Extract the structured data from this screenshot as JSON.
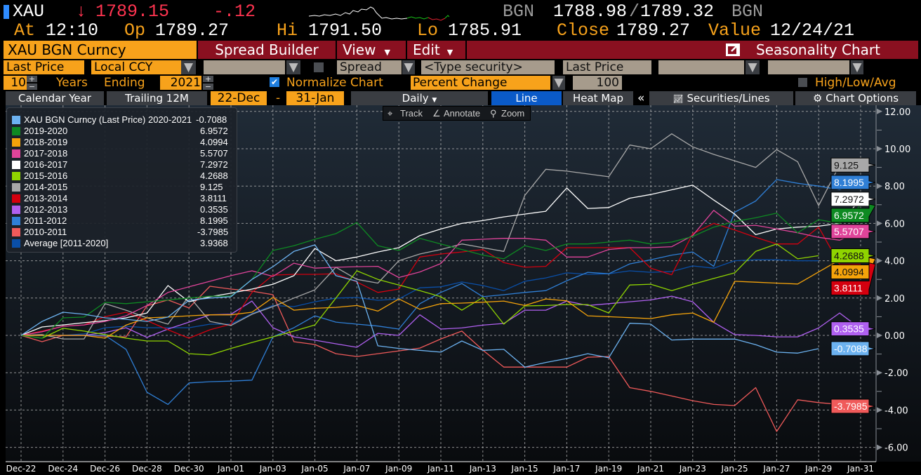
{
  "quote": {
    "ticker": "XAU",
    "direction_arrow": "↓",
    "last": "1789.15",
    "change": "-.12",
    "bid_source": "BGN",
    "bid": "1788.98",
    "separator": "/",
    "ask": "1789.32",
    "ask_source": "BGN",
    "at_label": "At",
    "at": "12:10",
    "op_label": "Op",
    "op": "1789.27",
    "hi_label": "Hi",
    "hi": "1791.50",
    "lo_label": "Lo",
    "lo": "1785.91",
    "close_label": "Close",
    "close": "1789.27",
    "value_label": "Value",
    "value": "12/24/21"
  },
  "menubar": {
    "security": "XAU BGN Curncy",
    "spread_builder": "Spread Builder",
    "view": "View",
    "edit": "Edit",
    "title": "Seasonality Chart"
  },
  "row4": {
    "field": "Last Price",
    "currency": "Local CCY",
    "compare_field": "",
    "spread": "Spread",
    "security_placeholder": "<Type security>",
    "field2": "Last Price",
    "extra1": "",
    "extra2": ""
  },
  "row5": {
    "years": "10",
    "years_label": "Years",
    "ending_label": "Ending",
    "ending_year": "2021",
    "normalize_checked": true,
    "normalize_label": "Normalize Chart",
    "normalize_mode": "Percent Change",
    "base_value": "100",
    "high_low_avg_checked": false,
    "high_low_avg_label": "High/Low/Avg"
  },
  "row6": {
    "calendar_year": "Calendar Year",
    "trailing": "Trailing 12M",
    "start": "22-Dec",
    "dash": "-",
    "end": "31-Jan",
    "periodicity": "Daily",
    "line": "Line",
    "heat_map": "Heat Map",
    "collapse": "«",
    "securities_lines": "Securities/Lines",
    "chart_options": "Chart Options"
  },
  "chart_tools": {
    "track": "Track",
    "annotate": "Annotate",
    "zoom": "Zoom"
  },
  "chart_data": {
    "type": "line",
    "x": [
      "Dec-22",
      "Dec-23",
      "Dec-24",
      "Dec-25",
      "Dec-26",
      "Dec-27",
      "Dec-28",
      "Dec-29",
      "Dec-30",
      "Dec-31",
      "Jan-01",
      "Jan-02",
      "Jan-03",
      "Jan-04",
      "Jan-05",
      "Jan-06",
      "Jan-07",
      "Jan-08",
      "Jan-09",
      "Jan-10",
      "Jan-11",
      "Jan-12",
      "Jan-13",
      "Jan-14",
      "Jan-15",
      "Jan-16",
      "Jan-17",
      "Jan-18",
      "Jan-19",
      "Jan-20",
      "Jan-21",
      "Jan-22",
      "Jan-23",
      "Jan-24",
      "Jan-25",
      "Jan-26",
      "Jan-27",
      "Jan-28",
      "Jan-29",
      "Jan-30",
      "Jan-31"
    ],
    "xticks": [
      "Dec-22",
      "Dec-24",
      "Dec-26",
      "Dec-28",
      "Dec-30",
      "Jan-01",
      "Jan-03",
      "Jan-05",
      "Jan-07",
      "Jan-09",
      "Jan-11",
      "Jan-13",
      "Jan-15",
      "Jan-17",
      "Jan-19",
      "Jan-21",
      "Jan-23",
      "Jan-25",
      "Jan-27",
      "Jan-29",
      "Jan-31"
    ],
    "yticks": [
      "12.00",
      "10.00",
      "8.00",
      "6.00",
      "4.00",
      "2.00",
      "0.00",
      "-2.00",
      "-4.00",
      "-6.00"
    ],
    "ylim": [
      -6.5,
      12.5
    ],
    "y_axis_side": "right",
    "grid": true,
    "legend_position": "top-left",
    "series": [
      {
        "name": "XAU BGN Curncy (Last Price) 2020-2021",
        "last": "-0.7088",
        "color": "#6cb2f0",
        "values": [
          0,
          0.75,
          1.24,
          1.13,
          0.94,
          0.86,
          0.75,
          0.98,
          1.88,
          2.0,
          2.07,
          3.0,
          3.68,
          4.5,
          4.85,
          3.2,
          2.9,
          -0.56,
          -0.7,
          -0.8,
          -0.9,
          -0.3,
          -0.8,
          -0.75,
          -1.7,
          -1.45,
          -1.24,
          -0.98,
          -1.2,
          0.65,
          0.6,
          -0.25,
          -0.2,
          -0.2,
          -0.2,
          -0.5,
          -0.9,
          -0.95,
          -0.71,
          null,
          null
        ]
      },
      {
        "name": "2019-2020",
        "last": "6.9572",
        "color": "#0e8a22",
        "values": [
          0,
          -0.15,
          0.94,
          0.98,
          1.77,
          1.7,
          1.8,
          1.9,
          2.0,
          2.1,
          2.1,
          3.0,
          4.55,
          4.8,
          5.15,
          5.45,
          6.05,
          4.8,
          4.55,
          5.2,
          4.9,
          4.6,
          4.3,
          4.1,
          4.8,
          4.55,
          4.9,
          4.9,
          5.0,
          5.1,
          4.9,
          5.0,
          5.3,
          5.8,
          6.1,
          6.3,
          6.55,
          5.5,
          6.2,
          6.0,
          6.96
        ]
      },
      {
        "name": "2018-2019",
        "last": "4.0994",
        "color": "#f5a30a",
        "values": [
          0,
          0,
          0,
          0,
          -0.15,
          0.55,
          0.94,
          0.98,
          1.05,
          1.1,
          1.1,
          1.24,
          2.03,
          1.35,
          1.45,
          1.5,
          1.6,
          1.3,
          1.95,
          1.4,
          1.7,
          1.73,
          1.78,
          1.84,
          1.6,
          1.95,
          1.85,
          1.05,
          1.0,
          0.95,
          0.9,
          1.1,
          1.2,
          0.7,
          2.9,
          2.85,
          2.8,
          2.75,
          3.4,
          4.05,
          4.1
        ]
      },
      {
        "name": "2017-2018",
        "last": "5.5707",
        "color": "#e0449a",
        "values": [
          0,
          0.19,
          0.49,
          0.56,
          0.75,
          1.05,
          1.6,
          2.3,
          2.6,
          2.9,
          3.2,
          3.46,
          3.16,
          3.87,
          3.6,
          3.65,
          3.68,
          3.7,
          3.1,
          3.4,
          3.85,
          5.1,
          5.15,
          5.2,
          5.2,
          5.1,
          4.2,
          4.2,
          4.6,
          4.7,
          4.7,
          4.75,
          5.35,
          6.7,
          5.85,
          5.9,
          5.7,
          5.5,
          5.25,
          5.1,
          5.57
        ]
      },
      {
        "name": "2016-2017",
        "last": "7.2972",
        "color": "#ffffff",
        "values": [
          0,
          0.45,
          0.56,
          0.68,
          0.79,
          0.94,
          1.2,
          2.67,
          1.8,
          2.07,
          2.26,
          2.48,
          2.74,
          3.2,
          4.66,
          4.0,
          4.2,
          4.47,
          4.7,
          5.35,
          5.7,
          6.0,
          6.15,
          6.35,
          6.5,
          6.65,
          7.9,
          6.8,
          6.85,
          7.35,
          7.55,
          7.8,
          8.05,
          7.25,
          6.5,
          5.4,
          5.7,
          5.8,
          5.85,
          6.0,
          7.3
        ]
      },
      {
        "name": "2015-2016",
        "last": "4.2688",
        "color": "#8fd400",
        "values": [
          0,
          -0.15,
          0.38,
          0.23,
          0.04,
          -0.15,
          -0.3,
          -0.3,
          -0.98,
          -1.05,
          -0.7,
          -0.38,
          -0.08,
          0.23,
          0.56,
          2.0,
          3.46,
          3.0,
          2.7,
          2.4,
          2.07,
          1.35,
          2.03,
          0.6,
          1.58,
          1.6,
          1.65,
          1.65,
          1.2,
          2.7,
          2.74,
          2.4,
          2.74,
          3.05,
          3.35,
          4.5,
          4.9,
          4.1,
          4.27,
          null,
          null
        ]
      },
      {
        "name": "2014-2015",
        "last": "9.125",
        "color": "#a8a8a8",
        "values": [
          0,
          0.04,
          -0.19,
          -0.19,
          1.7,
          1.35,
          0.94,
          0.6,
          2.1,
          0.75,
          0.53,
          1.13,
          1.54,
          2.0,
          2.44,
          3.65,
          3.0,
          2.8,
          4.0,
          4.36,
          4.6,
          4.9,
          4.7,
          4.5,
          7.5,
          8.9,
          8.8,
          8.65,
          8.5,
          10.2,
          10.0,
          10.8,
          10.1,
          9.7,
          9.35,
          9.0,
          9.95,
          9.3,
          6.95,
          9.13,
          null
        ]
      },
      {
        "name": "2013-2014",
        "last": "3.8111",
        "color": "#d4000f",
        "values": [
          0,
          0.23,
          0.49,
          0.56,
          1.0,
          1.24,
          0.79,
          0.3,
          -0.15,
          0.3,
          0.6,
          2.3,
          3.23,
          3.27,
          3.27,
          3.3,
          2.86,
          2.3,
          2.48,
          4.2,
          4.36,
          4.47,
          4.6,
          3.9,
          3.65,
          3.7,
          4.7,
          4.7,
          4.7,
          4.7,
          3.6,
          3.25,
          5.45,
          6.0,
          5.65,
          5.25,
          4.9,
          4.9,
          5.8,
          3.8,
          3.81
        ]
      },
      {
        "name": "2012-2013",
        "last": "0.3535",
        "color": "#b060f0",
        "values": [
          0,
          0,
          0,
          0,
          0.15,
          0.41,
          -0.11,
          0.34,
          0.71,
          1.1,
          1.13,
          1.84,
          0.41,
          -0.08,
          -0.26,
          -0.45,
          -0.64,
          0.11,
          0,
          1.1,
          0.34,
          0.4,
          0.55,
          0.64,
          1.35,
          1.35,
          1.84,
          1.6,
          1.7,
          1.8,
          1.9,
          2.1,
          1.8,
          0.7,
          0.04,
          0.0,
          -0.08,
          -0.08,
          0.4,
          1.2,
          0.35
        ]
      },
      {
        "name": "2011-2012",
        "last": "8.1995",
        "color": "#2f7fd6",
        "values": [
          0,
          0,
          0,
          0,
          0,
          -0.75,
          -3.05,
          -3.7,
          -2.55,
          -2.48,
          -2.45,
          -2.4,
          -0.08,
          0.41,
          1.05,
          0.71,
          0.6,
          0.5,
          0.34,
          1.7,
          2.3,
          2.78,
          2.07,
          2.18,
          2.3,
          2.4,
          2.93,
          3.38,
          3.3,
          3.83,
          4.05,
          4.3,
          4.47,
          3.7,
          6.6,
          7.2,
          8.35,
          8.15,
          8.0,
          7.8,
          8.2
        ]
      },
      {
        "name": "2010-2011",
        "last": "-3.7985",
        "color": "#f05a5a",
        "values": [
          0,
          -0.34,
          0,
          0,
          -0.04,
          -0.08,
          1.58,
          1.9,
          1.47,
          2.63,
          2.48,
          2.37,
          2.18,
          -0.34,
          -0.49,
          -0.98,
          -1.13,
          -0.98,
          -0.83,
          -0.68,
          -0.19,
          0.23,
          -0.79,
          -1.7,
          -1.7,
          -1.7,
          -1.7,
          -1.17,
          -1.13,
          -2.8,
          -3.0,
          -3.25,
          -3.5,
          -3.7,
          -3.76,
          -2.8,
          -5.15,
          -3.45,
          -3.6,
          -3.7,
          -3.8
        ]
      },
      {
        "name": "Average  [2011-2020]",
        "last": "3.9368",
        "color": "#0a4fa8",
        "tag": false,
        "values": [
          0,
          0,
          0,
          0.08,
          0.41,
          0.49,
          0.41,
          0.41,
          0.41,
          0.6,
          0.6,
          1.17,
          1.6,
          1.54,
          1.8,
          2.0,
          2.03,
          1.88,
          1.95,
          2.55,
          2.6,
          2.86,
          2.67,
          2.4,
          2.9,
          3.08,
          3.35,
          3.27,
          3.3,
          3.46,
          3.38,
          3.42,
          3.72,
          3.6,
          4.0,
          4.05,
          4.05,
          4.0,
          4.0,
          null,
          null
        ]
      }
    ]
  }
}
